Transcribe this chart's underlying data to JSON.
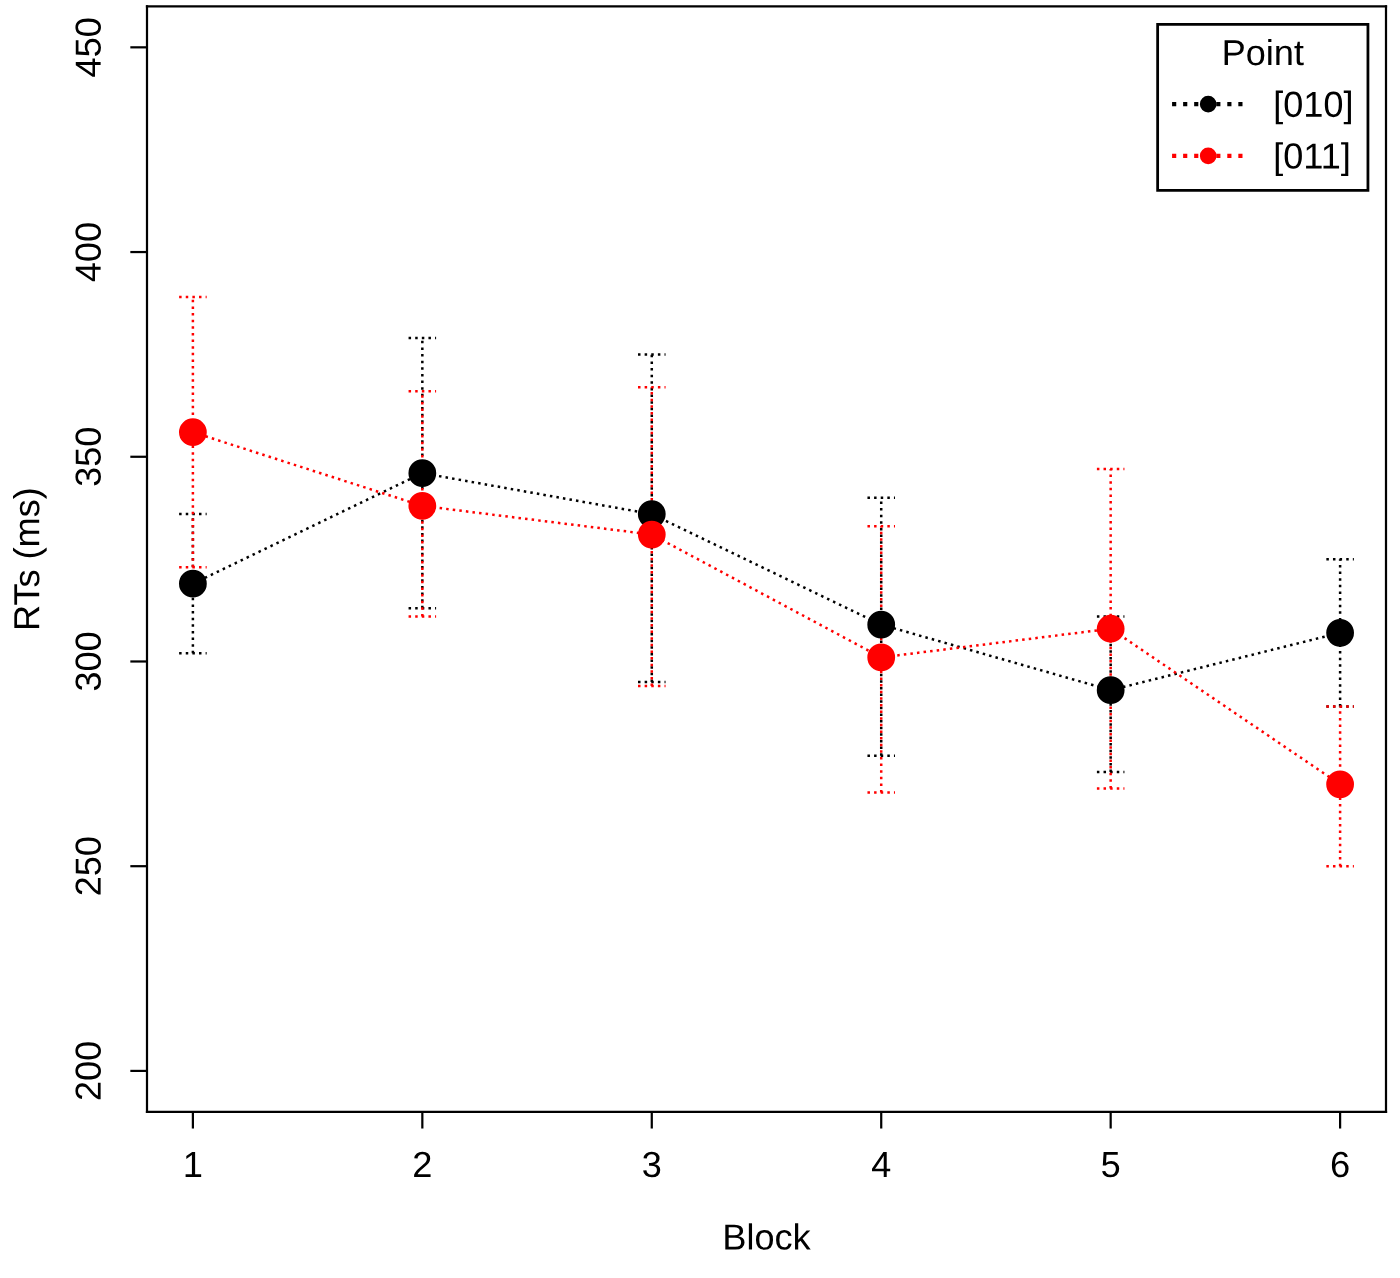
{
  "chart_data": {
    "type": "line",
    "xlabel": "Block",
    "ylabel": "RTs (ms)",
    "legend_title": "Point",
    "legend": "top right",
    "grid": false,
    "marker": "circle",
    "line_style": "dotted",
    "x": [
      1,
      2,
      3,
      4,
      5,
      6
    ],
    "xlim": [
      0.8,
      6.2
    ],
    "xticks": [
      1,
      2,
      3,
      4,
      5,
      6
    ],
    "ylim": [
      190,
      460
    ],
    "yticks": [
      200,
      250,
      300,
      350,
      400,
      450
    ],
    "series": [
      {
        "name": "[010]",
        "color": "#000000",
        "values": [
          319,
          346,
          336,
          309,
          293,
          307
        ],
        "errors": [
          [
            302,
            336
          ],
          [
            313,
            379
          ],
          [
            295,
            375
          ],
          [
            277,
            340
          ],
          [
            273,
            311
          ],
          [
            289,
            325
          ]
        ]
      },
      {
        "name": "[011]",
        "color": "#ff0000",
        "values": [
          356,
          338,
          331,
          301,
          308,
          270
        ],
        "errors": [
          [
            323,
            389
          ],
          [
            311,
            366
          ],
          [
            294,
            367
          ],
          [
            268,
            333
          ],
          [
            269,
            347
          ],
          [
            250,
            289
          ]
        ]
      }
    ]
  }
}
